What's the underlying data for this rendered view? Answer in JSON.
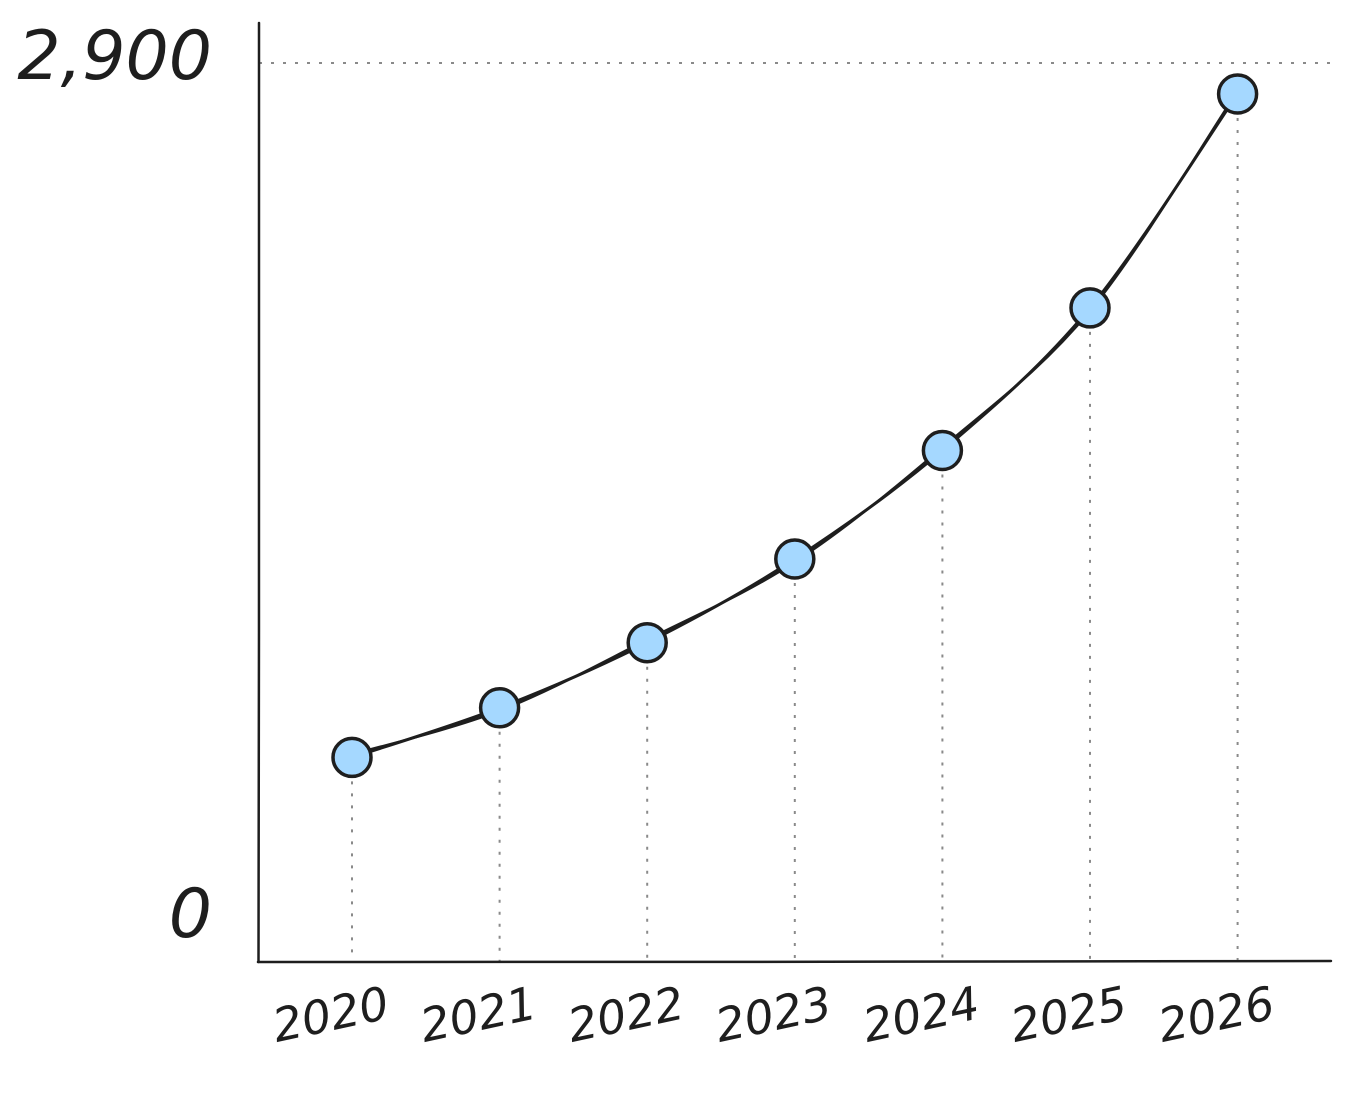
{
  "chart_data": {
    "type": "line",
    "title": "",
    "xlabel": "",
    "ylabel": "",
    "categories": [
      "2020",
      "2021",
      "2022",
      "2023",
      "2024",
      "2025",
      "2026"
    ],
    "series": [
      {
        "values": [
          660,
          820,
          1030,
          1300,
          1650,
          2110,
          2800
        ]
      }
    ],
    "ylim": [
      0,
      2900
    ],
    "y_ticks": [
      "0",
      "2,900"
    ],
    "grid": "dotted guide lines from each point to x-axis and at top tick",
    "legend": "none",
    "colors": {
      "line": "#1e1e1e",
      "point_fill": "#a5d8ff",
      "point_stroke": "#1e1e1e",
      "guide": "#8a8a8a"
    }
  }
}
